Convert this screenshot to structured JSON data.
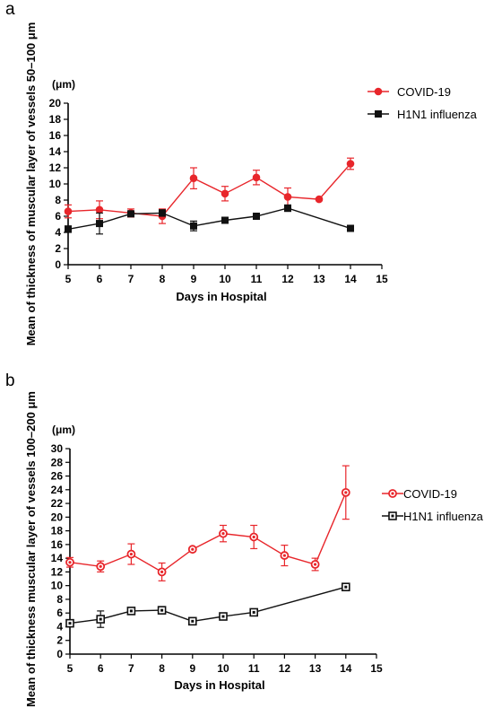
{
  "panels": [
    {
      "letter": "a",
      "chart_data": {
        "type": "line",
        "ylabel": "Mean of thickness of muscular layer of vessels 50–100 μm",
        "unit": "(μm)",
        "xlabel": "Days in Hospital",
        "xlim": [
          5,
          15
        ],
        "ylim": [
          0,
          20
        ],
        "xticks": [
          "5",
          "6",
          "7",
          "8",
          "9",
          "10",
          "11",
          "12",
          "13",
          "14",
          "15"
        ],
        "yticks": [
          "0",
          "2",
          "4",
          "6",
          "8",
          "10",
          "12",
          "14",
          "16",
          "18",
          "20"
        ],
        "legend_position": "top-right",
        "marker_style": "filled",
        "series": [
          {
            "name": "COVID-19",
            "color": "#e8262b",
            "marker": "circle",
            "points": [
              {
                "x": 5,
                "y": 6.6,
                "err": 0.8
              },
              {
                "x": 6,
                "y": 6.8,
                "err": 1.1
              },
              {
                "x": 7,
                "y": 6.4,
                "err": 0.5
              },
              {
                "x": 8,
                "y": 6.0,
                "err": 0.9
              },
              {
                "x": 9,
                "y": 10.7,
                "err": 1.3
              },
              {
                "x": 10,
                "y": 8.8,
                "err": 0.9
              },
              {
                "x": 11,
                "y": 10.8,
                "err": 0.9
              },
              {
                "x": 12,
                "y": 8.4,
                "err": 1.1
              },
              {
                "x": 13,
                "y": 8.1,
                "err": 0
              },
              {
                "x": 14,
                "y": 12.5,
                "err": 0.7
              }
            ]
          },
          {
            "name": "H1N1 influenza",
            "color": "#111111",
            "marker": "square",
            "points": [
              {
                "x": 5,
                "y": 4.4,
                "err": 0.4
              },
              {
                "x": 6,
                "y": 5.1,
                "err": 1.3
              },
              {
                "x": 7,
                "y": 6.3,
                "err": 0.3
              },
              {
                "x": 8,
                "y": 6.4,
                "err": 0.4
              },
              {
                "x": 9,
                "y": 4.8,
                "err": 0.6
              },
              {
                "x": 10,
                "y": 5.5,
                "err": 0
              },
              {
                "x": 11,
                "y": 6.0,
                "err": 0
              },
              {
                "x": 12,
                "y": 7.0,
                "err": 0.4
              },
              {
                "x": 14,
                "y": 4.5,
                "err": 0
              }
            ]
          }
        ]
      }
    },
    {
      "letter": "b",
      "chart_data": {
        "type": "line",
        "ylabel": "Mean of thickness muscular layer of vessels 100–200 μm",
        "unit": "(μm)",
        "xlabel": "Days in Hospital",
        "xlim": [
          5,
          15
        ],
        "ylim": [
          0,
          30
        ],
        "xticks": [
          "5",
          "6",
          "7",
          "8",
          "9",
          "10",
          "11",
          "12",
          "13",
          "14",
          "15"
        ],
        "yticks": [
          "0",
          "2",
          "4",
          "6",
          "8",
          "10",
          "12",
          "14",
          "16",
          "18",
          "20",
          "22",
          "24",
          "26",
          "28",
          "30"
        ],
        "legend_position": "right",
        "marker_style": "open",
        "series": [
          {
            "name": "COVID-19",
            "color": "#e8262b",
            "marker": "circle",
            "points": [
              {
                "x": 5,
                "y": 13.4,
                "err": 0.7
              },
              {
                "x": 6,
                "y": 12.8,
                "err": 0.8
              },
              {
                "x": 7,
                "y": 14.6,
                "err": 1.5
              },
              {
                "x": 8,
                "y": 12.0,
                "err": 1.3
              },
              {
                "x": 9,
                "y": 15.3,
                "err": 0.3
              },
              {
                "x": 10,
                "y": 17.6,
                "err": 1.2
              },
              {
                "x": 11,
                "y": 17.1,
                "err": 1.7
              },
              {
                "x": 12,
                "y": 14.4,
                "err": 1.5
              },
              {
                "x": 13,
                "y": 13.1,
                "err": 0.9
              },
              {
                "x": 14,
                "y": 23.6,
                "err": 3.9
              }
            ]
          },
          {
            "name": "H1N1 influenza",
            "color": "#111111",
            "marker": "square",
            "points": [
              {
                "x": 5,
                "y": 4.5,
                "err": 0.3
              },
              {
                "x": 6,
                "y": 5.1,
                "err": 1.2
              },
              {
                "x": 7,
                "y": 6.3,
                "err": 0.3
              },
              {
                "x": 8,
                "y": 6.4,
                "err": 0.3
              },
              {
                "x": 9,
                "y": 4.8,
                "err": 0.5
              },
              {
                "x": 10,
                "y": 5.5,
                "err": 0.3
              },
              {
                "x": 11,
                "y": 6.1,
                "err": 0.3
              },
              {
                "x": 14,
                "y": 9.8,
                "err": 0.3
              }
            ]
          }
        ]
      }
    }
  ]
}
